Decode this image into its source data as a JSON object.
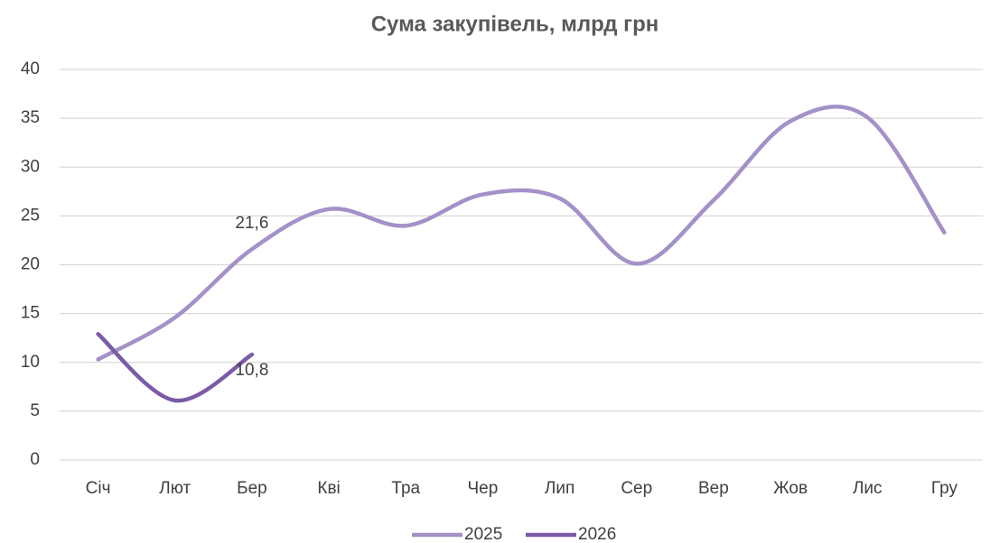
{
  "chart_data": {
    "type": "line",
    "title": "Сума закупівель, млрд грн",
    "categories": [
      "Січ",
      "Лют",
      "Бер",
      "Кві",
      "Тра",
      "Чер",
      "Лип",
      "Сер",
      "Вер",
      "Жов",
      "Лис",
      "Гру"
    ],
    "series": [
      {
        "name": "2025",
        "color": "#a391c8",
        "values": [
          10.3,
          14.6,
          21.6,
          25.7,
          24.0,
          27.2,
          26.8,
          20.1,
          26.6,
          34.7,
          35.1,
          23.3
        ],
        "value_labels": [
          null,
          null,
          "21,6",
          null,
          null,
          null,
          null,
          null,
          null,
          null,
          null,
          null
        ]
      },
      {
        "name": "2026",
        "color": "#7a5ba6",
        "values": [
          12.9,
          6.1,
          10.8,
          null,
          null,
          null,
          null,
          null,
          null,
          null,
          null,
          null
        ],
        "value_labels": [
          null,
          null,
          "10,8",
          null,
          null,
          null,
          null,
          null,
          null,
          null,
          null,
          null
        ]
      }
    ],
    "ylim": [
      0,
      40
    ],
    "yticks": [
      0,
      5,
      10,
      15,
      20,
      25,
      30,
      35,
      40
    ],
    "grid": true,
    "smooth": true,
    "legend": "bottom"
  }
}
